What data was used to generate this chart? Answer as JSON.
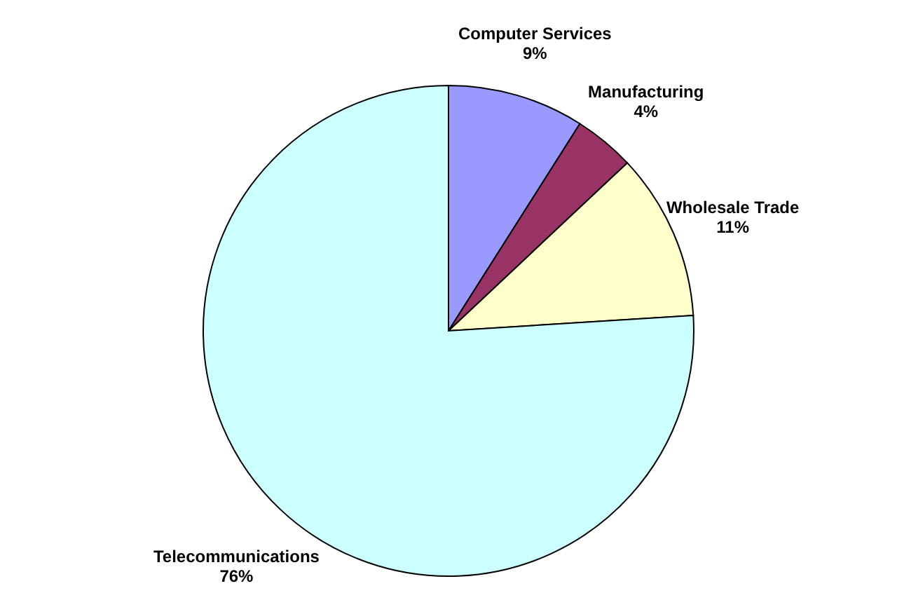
{
  "chart_data": {
    "type": "pie",
    "categories": [
      "Computer Services",
      "Manufacturing",
      "Wholesale Trade",
      "Telecommunications"
    ],
    "values": [
      9,
      4,
      11,
      76
    ],
    "colors": [
      "#9999ff",
      "#993366",
      "#ffffcc",
      "#ccffff"
    ],
    "value_labels": [
      "9%",
      "4%",
      "11%",
      "76%"
    ]
  }
}
